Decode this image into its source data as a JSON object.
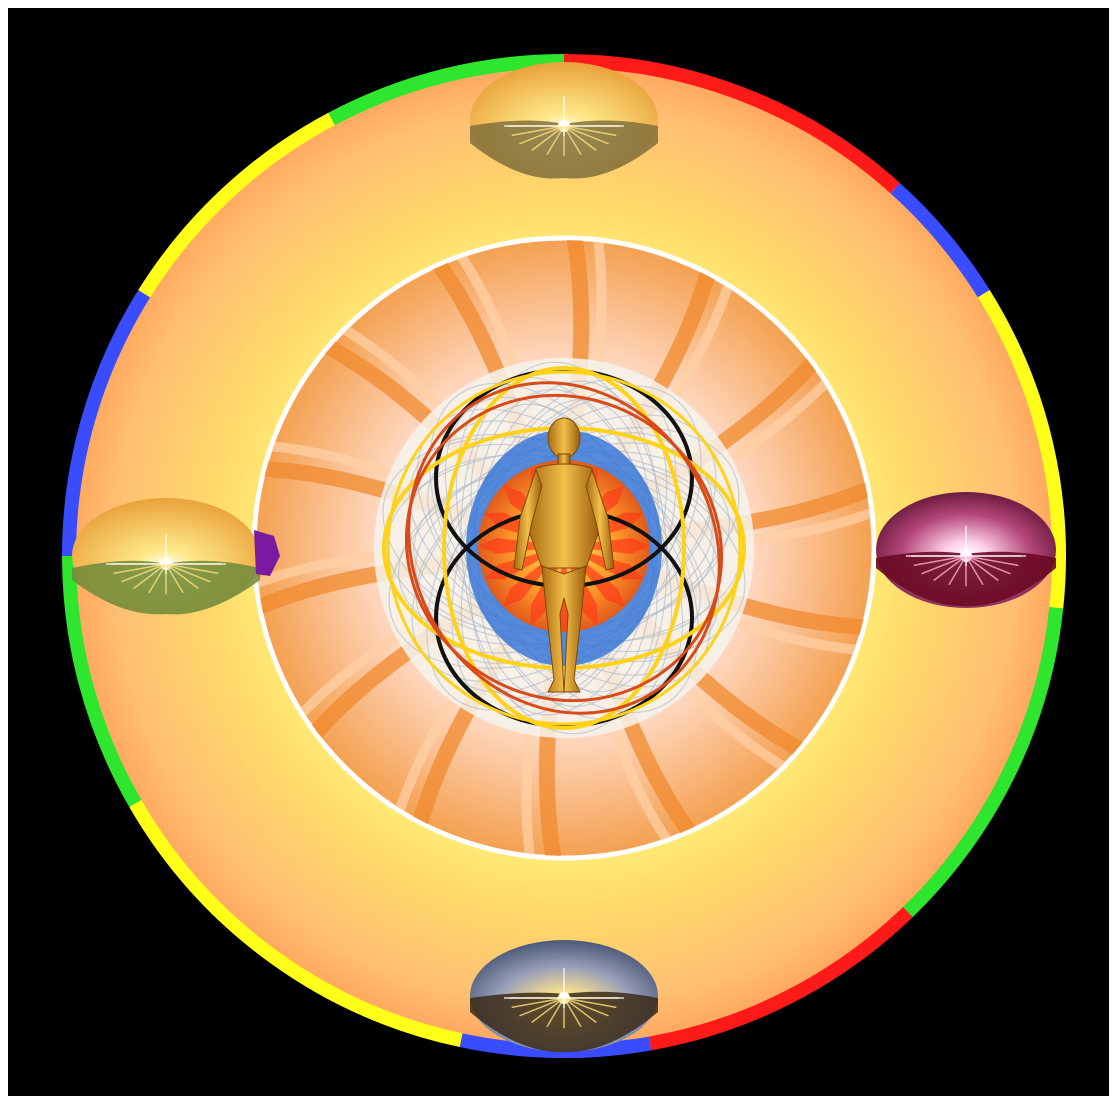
{
  "image": {
    "subject": "mandala-sun-figure",
    "ring_colors": [
      "#ff1a1a",
      "#3a4cff",
      "#ffff1a",
      "#2fe62f"
    ],
    "background_color": "#000000",
    "outer_glow_color": "#ffb35c",
    "inner_glow_color": "#ffe85a",
    "vortex_colors": [
      "#f08a2e",
      "#ffd1a6",
      "#ffe4ef"
    ],
    "orbit_colors": [
      "#111111",
      "#ffd21a",
      "#d84a18",
      "#2a6fe0"
    ],
    "figure_color": "#d8a22a",
    "sunset_panels": [
      "sunset-top",
      "sunset-left",
      "sunset-right",
      "sunset-bottom"
    ]
  }
}
